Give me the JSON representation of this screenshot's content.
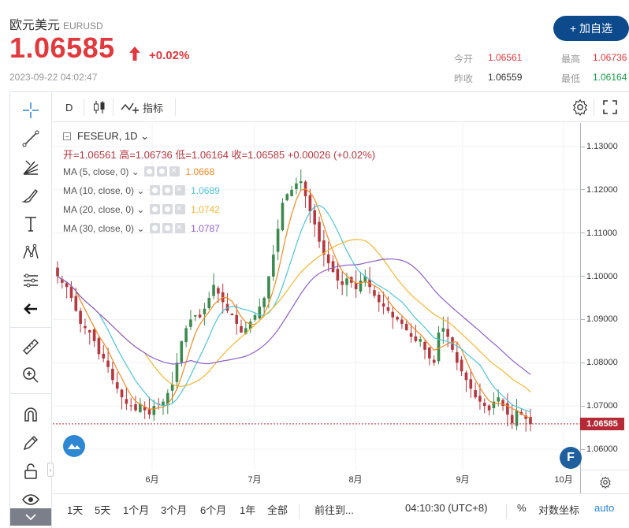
{
  "header": {
    "name": "欧元美元",
    "symbol": "EURUSD",
    "price": "1.06585",
    "change": "+0.02%",
    "datetime": "2023-09-22 04:02:47",
    "add_button": "+ 加自选",
    "stats": {
      "open_label": "今开",
      "open_value": "1.06561",
      "high_label": "最高",
      "high_value": "1.06736",
      "prev_label": "昨收",
      "prev_value": "1.06559",
      "low_label": "最低",
      "low_value": "1.06164"
    }
  },
  "toolbar": {
    "interval": "D",
    "indicators": "指标"
  },
  "legend": {
    "series": "FESEUR, 1D",
    "ohlc": "开=1.06561  高=1.06736  低=1.06164  收=1.06585  +0.00026 (+0.02%)",
    "ma": [
      {
        "label": "MA (5, close, 0)",
        "value": "1.0668",
        "color": "#f08a24"
      },
      {
        "label": "MA (10, close, 0)",
        "value": "1.0689",
        "color": "#4fc4d4"
      },
      {
        "label": "MA (20, close, 0)",
        "value": "1.0742",
        "color": "#f2b632"
      },
      {
        "label": "MA (30, close, 0)",
        "value": "1.0787",
        "color": "#8f5fc7"
      }
    ]
  },
  "price_axis": {
    "ticks": [
      "1.13000",
      "1.12000",
      "1.11000",
      "1.10000",
      "1.09000",
      "1.08000",
      "1.07000",
      "1.06000"
    ],
    "current": "1.06585"
  },
  "time_axis": {
    "ticks": [
      "6月",
      "7月",
      "8月",
      "9月",
      "10月"
    ]
  },
  "bottom": {
    "ranges": [
      "1天",
      "5天",
      "1个月",
      "3个月",
      "6个月",
      "1年",
      "全部"
    ],
    "goto": "前往到...",
    "clock": "04:10:30 (UTC+8)",
    "percent": "%",
    "log": "对数坐标",
    "auto": "auto"
  },
  "badge": "F",
  "colors": {
    "up": "#3d8a4f",
    "down": "#b5383f",
    "accent": "#0d4a8c",
    "price_red": "#e0393e"
  },
  "chart_data": {
    "type": "candlestick",
    "y_range": [
      1.055,
      1.135
    ],
    "x_labels": [
      "6月",
      "7月",
      "8月",
      "9月",
      "10月"
    ],
    "candles_close": [
      1.1,
      1.0985,
      1.0975,
      1.095,
      1.092,
      1.089,
      1.088,
      1.087,
      1.085,
      1.082,
      1.081,
      1.079,
      1.076,
      1.074,
      1.072,
      1.0705,
      1.07,
      1.069,
      1.0705,
      1.069,
      1.068,
      1.07,
      1.0705,
      1.071,
      1.073,
      1.075,
      1.08,
      1.085,
      1.088,
      1.09,
      1.091,
      1.0905,
      1.0925,
      1.095,
      1.098,
      1.096,
      1.094,
      1.092,
      1.091,
      1.089,
      1.087,
      1.088,
      1.0895,
      1.091,
      1.093,
      1.095,
      1.1,
      1.105,
      1.111,
      1.117,
      1.119,
      1.12,
      1.1215,
      1.122,
      1.1185,
      1.115,
      1.112,
      1.108,
      1.105,
      1.103,
      1.101,
      1.099,
      1.098,
      1.0995,
      1.0985,
      1.097,
      1.099,
      1.1,
      1.0975,
      1.0955,
      1.094,
      1.093,
      1.092,
      1.0905,
      1.09,
      1.089,
      1.0875,
      1.086,
      1.085,
      1.0855,
      1.083,
      1.081,
      1.08,
      1.087,
      1.088,
      1.086,
      1.083,
      1.08,
      1.078,
      1.076,
      1.074,
      1.072,
      1.071,
      1.07,
      1.069,
      1.071,
      1.072,
      1.07,
      1.068,
      1.066,
      1.069,
      1.068,
      1.067,
      1.0658
    ],
    "ma5_last": 1.0668,
    "ma10_last": 1.0689,
    "ma20_last": 1.0742,
    "ma30_last": 1.0787
  }
}
